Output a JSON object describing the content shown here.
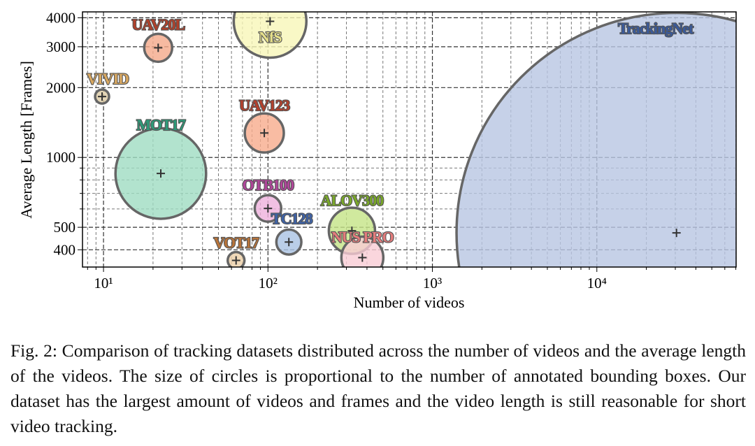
{
  "chart_data": {
    "type": "bubble",
    "xlabel": "Number of videos",
    "ylabel": "Average Length [Frames]",
    "xlog": true,
    "ylog": true,
    "grid": true,
    "xlim": [
      7.45,
      70300
    ],
    "ylim": [
      337,
      4240
    ],
    "xticks": [
      {
        "value": 10,
        "label": "10¹"
      },
      {
        "value": 100,
        "label": "10²"
      },
      {
        "value": 1000,
        "label": "10³"
      },
      {
        "value": 10000,
        "label": "10⁴"
      }
    ],
    "xminorticks": [
      8,
      9,
      20,
      30,
      40,
      50,
      60,
      70,
      80,
      90,
      200,
      300,
      400,
      500,
      600,
      700,
      800,
      900,
      2000,
      3000,
      4000,
      5000,
      6000,
      7000,
      8000,
      9000,
      20000,
      30000,
      40000,
      50000,
      60000,
      70000
    ],
    "yticks": [
      400,
      500,
      1000,
      2000,
      3000,
      4000
    ],
    "yminorticks": [
      600,
      700,
      800,
      900
    ],
    "series": [
      {
        "name": "VIVID",
        "color": "#dccaa4",
        "label_color": "#d9a860",
        "x": [
          9.8
        ],
        "values": [
          1830
        ],
        "sizes": [
          100
        ]
      },
      {
        "name": "UAV20L",
        "color": "#f4a98a",
        "label_color": "#b0402a",
        "x": [
          21.5
        ],
        "values": [
          2970
        ],
        "sizes": [
          400
        ]
      },
      {
        "name": "NfS",
        "color": "#f8f6b8",
        "label_color": "#e6e08a",
        "x": [
          103
        ],
        "values": [
          3860
        ],
        "sizes": [
          2700
        ]
      },
      {
        "name": "MOT17",
        "color": "#9fdcc2",
        "label_color": "#2e9a78",
        "x": [
          22.3
        ],
        "values": [
          853
        ],
        "sizes": [
          4200
        ]
      },
      {
        "name": "UAV123",
        "color": "#f8ab8c",
        "label_color": "#b4402c",
        "x": [
          95
        ],
        "values": [
          1275
        ],
        "sizes": [
          780
        ]
      },
      {
        "name": "OTB100",
        "color": "#eeb0dc",
        "label_color": "#b0469a",
        "x": [
          100
        ],
        "values": [
          603
        ],
        "sizes": [
          360
        ]
      },
      {
        "name": "TC128",
        "color": "#a9c2e2",
        "label_color": "#3e62a6",
        "x": [
          134
        ],
        "values": [
          432
        ],
        "sizes": [
          320
        ]
      },
      {
        "name": "VOT17",
        "color": "#ecd0a8",
        "label_color": "#b8743a",
        "x": [
          64
        ],
        "values": [
          360
        ],
        "sizes": [
          144
        ]
      },
      {
        "name": "ALOV300",
        "color": "#c4e486",
        "label_color": "#7aa82a",
        "x": [
          324
        ],
        "values": [
          483
        ],
        "sizes": [
          1090
        ]
      },
      {
        "name": "NUS PRO",
        "color": "#f9ccd4",
        "label_color": "#e47c7c",
        "x": [
          375
        ],
        "values": [
          370
        ],
        "sizes": [
          900
        ]
      },
      {
        "name": "TrackingNet",
        "color": "#b8c6e2",
        "label_color": "#3a5a9a",
        "x": [
          30500
        ],
        "values": [
          473
        ],
        "sizes": [
          99000
        ]
      }
    ]
  },
  "caption": "Fig. 2: Comparison of tracking datasets distributed across the number of videos and the average length of the videos. The size of circles is proportional to the number of annotated bounding boxes. Our dataset has the largest amount of videos and frames and the video length is still reasonable for short video tracking."
}
